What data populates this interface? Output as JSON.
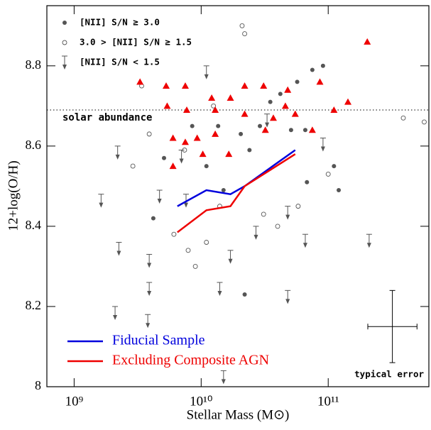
{
  "chart_data": {
    "type": "scatter",
    "xlabel": "Stellar Mass (M⊙)",
    "ylabel": "12+log(O/H)",
    "xscale": "log",
    "xlim": [
      610000000.0,
      620000000000.0
    ],
    "ylim": [
      8,
      8.95
    ],
    "xticks": [
      {
        "value": 1000000000.0,
        "label": "10⁹"
      },
      {
        "value": 10000000000.0,
        "label": "10¹⁰"
      },
      {
        "value": 100000000000.0,
        "label": "10¹¹"
      }
    ],
    "yticks": [
      8,
      8.2,
      8.4,
      8.6,
      8.8
    ],
    "series": [
      {
        "name": "[NII] S/N ≥ 3.0",
        "marker": "filled-circle",
        "color": "#555555",
        "x": [
          4200000000.0,
          5100000000.0,
          8500000000.0,
          13600000000.0,
          20500000000.0,
          24000000000.0,
          29000000000.0,
          35000000000.0,
          42000000000.0,
          51000000000.0,
          57000000000.0,
          66000000000.0,
          75000000000.0,
          91000000000.0,
          68000000000.0,
          121000000000.0,
          15000000000.0,
          22000000000.0,
          11000000000.0,
          111000000000.0
        ],
        "values": [
          8.42,
          8.57,
          8.65,
          8.65,
          8.63,
          8.59,
          8.65,
          8.71,
          8.73,
          8.64,
          8.76,
          8.64,
          8.79,
          8.8,
          8.51,
          8.49,
          8.49,
          8.23,
          8.55,
          8.55
        ]
      },
      {
        "name": "3.0 > [NII] S/N ≥ 1.5",
        "marker": "open-circle",
        "color": "#555555",
        "x": [
          3900000000.0,
          3400000000.0,
          21000000000.0,
          22000000000.0,
          390000000000.0,
          570000000000.0,
          2900000000.0,
          12500000000.0,
          14000000000.0,
          7900000000.0,
          9000000000.0,
          6100000000.0,
          31000000000.0,
          40000000000.0,
          58000000000.0,
          100000000000.0,
          7400000000.0,
          11000000000.0
        ],
        "values": [
          8.63,
          8.75,
          8.9,
          8.88,
          8.67,
          8.66,
          8.55,
          8.7,
          8.45,
          8.34,
          8.3,
          8.38,
          8.43,
          8.4,
          8.45,
          8.53,
          8.59,
          8.36
        ]
      },
      {
        "name": "[NII] S/N < 1.5",
        "marker": "upper-limit",
        "color": "#555555",
        "x": [
          2200000000.0,
          1630000000.0,
          2100000000.0,
          2250000000.0,
          3900000000.0,
          3900000000.0,
          3800000000.0,
          4700000000.0,
          7000000000.0,
          7600000000.0,
          11000000000.0,
          14000000000.0,
          17000000000.0,
          27000000000.0,
          33000000000.0,
          48000000000.0,
          48000000000.0,
          66000000000.0,
          91000000000.0,
          210000000000.0,
          15000000000.0
        ],
        "values": [
          8.6,
          8.48,
          8.2,
          8.36,
          8.33,
          8.26,
          8.18,
          8.49,
          8.59,
          8.48,
          8.8,
          8.26,
          8.34,
          8.4,
          8.68,
          8.45,
          8.24,
          8.38,
          8.62,
          8.38,
          8.04
        ]
      },
      {
        "marker": "triangle",
        "color": "#ee0000",
        "x": [
          3300000000.0,
          5300000000.0,
          5400000000.0,
          7500000000.0,
          7700000000.0,
          6000000000.0,
          7500000000.0,
          9300000000.0,
          10300000000.0,
          12100000000.0,
          12900000000.0,
          12900000000.0,
          17000000000.0,
          22000000000.0,
          22000000000.0,
          16500000000.0,
          31000000000.0,
          32000000000.0,
          37000000000.0,
          46000000000.0,
          48000000000.0,
          55000000000.0,
          75000000000.0,
          86000000000.0,
          111000000000.0,
          143000000000.0,
          203000000000.0,
          6000000000.0
        ],
        "values": [
          8.76,
          8.75,
          8.7,
          8.75,
          8.69,
          8.62,
          8.61,
          8.62,
          8.58,
          8.72,
          8.63,
          8.69,
          8.72,
          8.68,
          8.75,
          8.58,
          8.75,
          8.64,
          8.67,
          8.7,
          8.74,
          8.68,
          8.64,
          8.76,
          8.69,
          8.71,
          8.86,
          8.55
        ]
      },
      {
        "name": "Fiducial Sample",
        "marker": "line",
        "color": "#0000dd",
        "x": [
          6500000000.0,
          11000000000.0,
          17000000000.0,
          22000000000.0,
          55000000000.0
        ],
        "values": [
          8.45,
          8.49,
          8.48,
          8.5,
          8.59
        ]
      },
      {
        "name": "Excluding Composite AGN",
        "marker": "line",
        "color": "#ee0000",
        "x": [
          6500000000.0,
          11000000000.0,
          17000000000.0,
          22000000000.0,
          55000000000.0
        ],
        "values": [
          8.385,
          8.44,
          8.45,
          8.5,
          8.58
        ]
      }
    ],
    "solar_abundance": {
      "label": "solar abundance",
      "value": 8.69
    },
    "error_bar": {
      "label": "typical error",
      "x": 320000000000.0,
      "xlo": 205000000000.0,
      "xhi": 500000000000.0,
      "y": 8.15,
      "ylo": 8.06,
      "yhi": 8.24
    }
  }
}
